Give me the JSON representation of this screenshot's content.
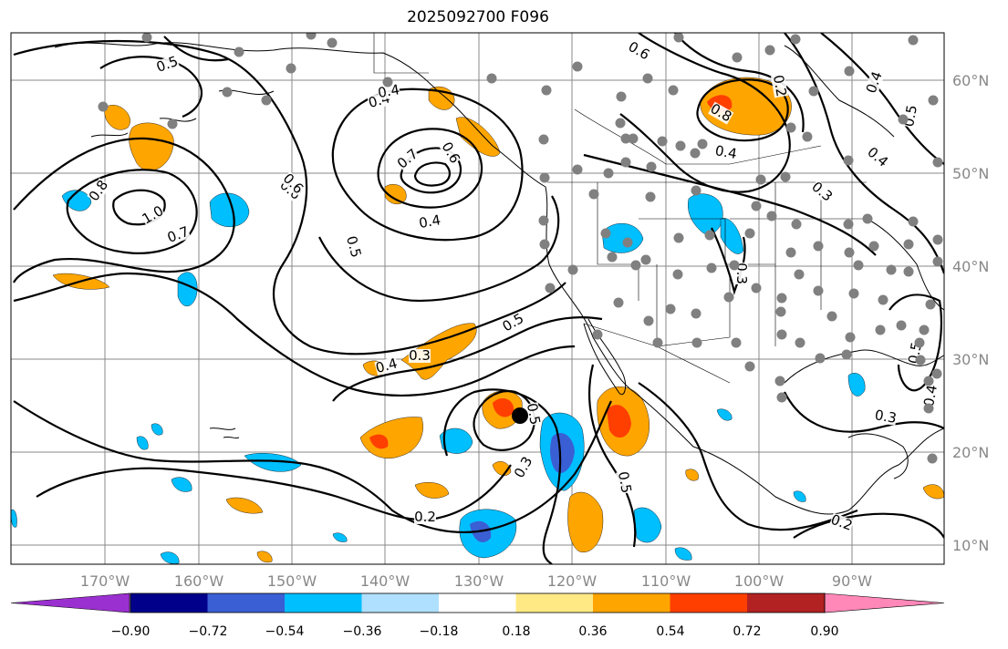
{
  "title": "2025092700 F096",
  "latitude_labels": [
    "60°N",
    "50°N",
    "40°N",
    "30°N",
    "20°N",
    "10°N"
  ],
  "longitude_labels": [
    "170°W",
    "160°W",
    "150°W",
    "140°W",
    "130°W",
    "120°W",
    "110°W",
    "100°W",
    "90°W"
  ],
  "colorbar": {
    "tick_labels": [
      "−0.90",
      "−0.72",
      "−0.54",
      "−0.36",
      "−0.18",
      "0.18",
      "0.36",
      "0.54",
      "0.72",
      "0.90"
    ],
    "colors": [
      "#9b30d0",
      "#00008b",
      "#3a5fd4",
      "#00bfff",
      "#b0e0ff",
      "#ffffff",
      "#ffe985",
      "#ffa500",
      "#ff3f00",
      "#b22222",
      "#ff88b8"
    ]
  },
  "contour_labels": [
    "0.5",
    "0.6",
    "0.4",
    "0.6",
    "0.8",
    "1.0",
    "0.7",
    "0.4",
    "0.6",
    "0.5",
    "0.7",
    "0.6",
    "0.4",
    "0.5",
    "0.4",
    "0.5",
    "0.3",
    "0.5",
    "0.8",
    "0.4",
    "0.3",
    "0.3",
    "0.2",
    "0.3",
    "0.5",
    "0.4",
    "0.2",
    "0.3",
    "0.2",
    "0.4",
    "0.4",
    "0.5"
  ],
  "colors": {
    "contour": "#000000",
    "grid": "#888888",
    "station": "#808080",
    "orange": "#ffa500",
    "red_orange": "#ff3f00",
    "blue": "#00bfff",
    "dark_blue": "#3a5fd4"
  }
}
